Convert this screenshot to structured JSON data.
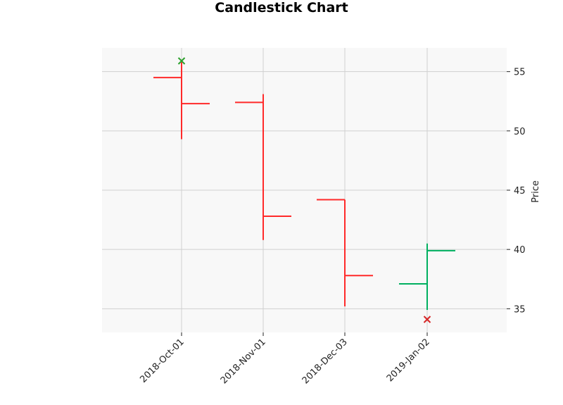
{
  "chart_data": {
    "type": "ohlc",
    "title": "Candlestick Chart",
    "xlabel": "",
    "ylabel": "Price",
    "y_axis_side": "right",
    "ylim": [
      33,
      57
    ],
    "yticks": [
      35,
      40,
      45,
      50,
      55
    ],
    "grid": true,
    "legend": "none",
    "categories": [
      "2018-Oct-01",
      "2018-Nov-01",
      "2018-Dec-03",
      "2019-Jan-02"
    ],
    "ohlc": [
      {
        "date": "2018-Oct-01",
        "open": 54.5,
        "high": 55.9,
        "low": 49.3,
        "close": 52.3
      },
      {
        "date": "2018-Nov-01",
        "open": 52.4,
        "high": 53.1,
        "low": 40.8,
        "close": 42.8
      },
      {
        "date": "2018-Dec-03",
        "open": 44.2,
        "high": 44.2,
        "low": 35.2,
        "close": 37.8
      },
      {
        "date": "2019-Jan-02",
        "open": 37.1,
        "high": 40.5,
        "low": 34.9,
        "close": 39.9
      }
    ],
    "markers": [
      {
        "date": "2018-Oct-01",
        "value": 55.9,
        "symbol": "x",
        "color": "#2ca02c"
      },
      {
        "date": "2019-Jan-02",
        "value": 34.1,
        "symbol": "x",
        "color": "#d62728"
      }
    ],
    "colors": {
      "up": "#00b060",
      "down": "#ff2a2a",
      "plot_background": "#f8f8f8",
      "grid": "#d0d0d0"
    }
  }
}
